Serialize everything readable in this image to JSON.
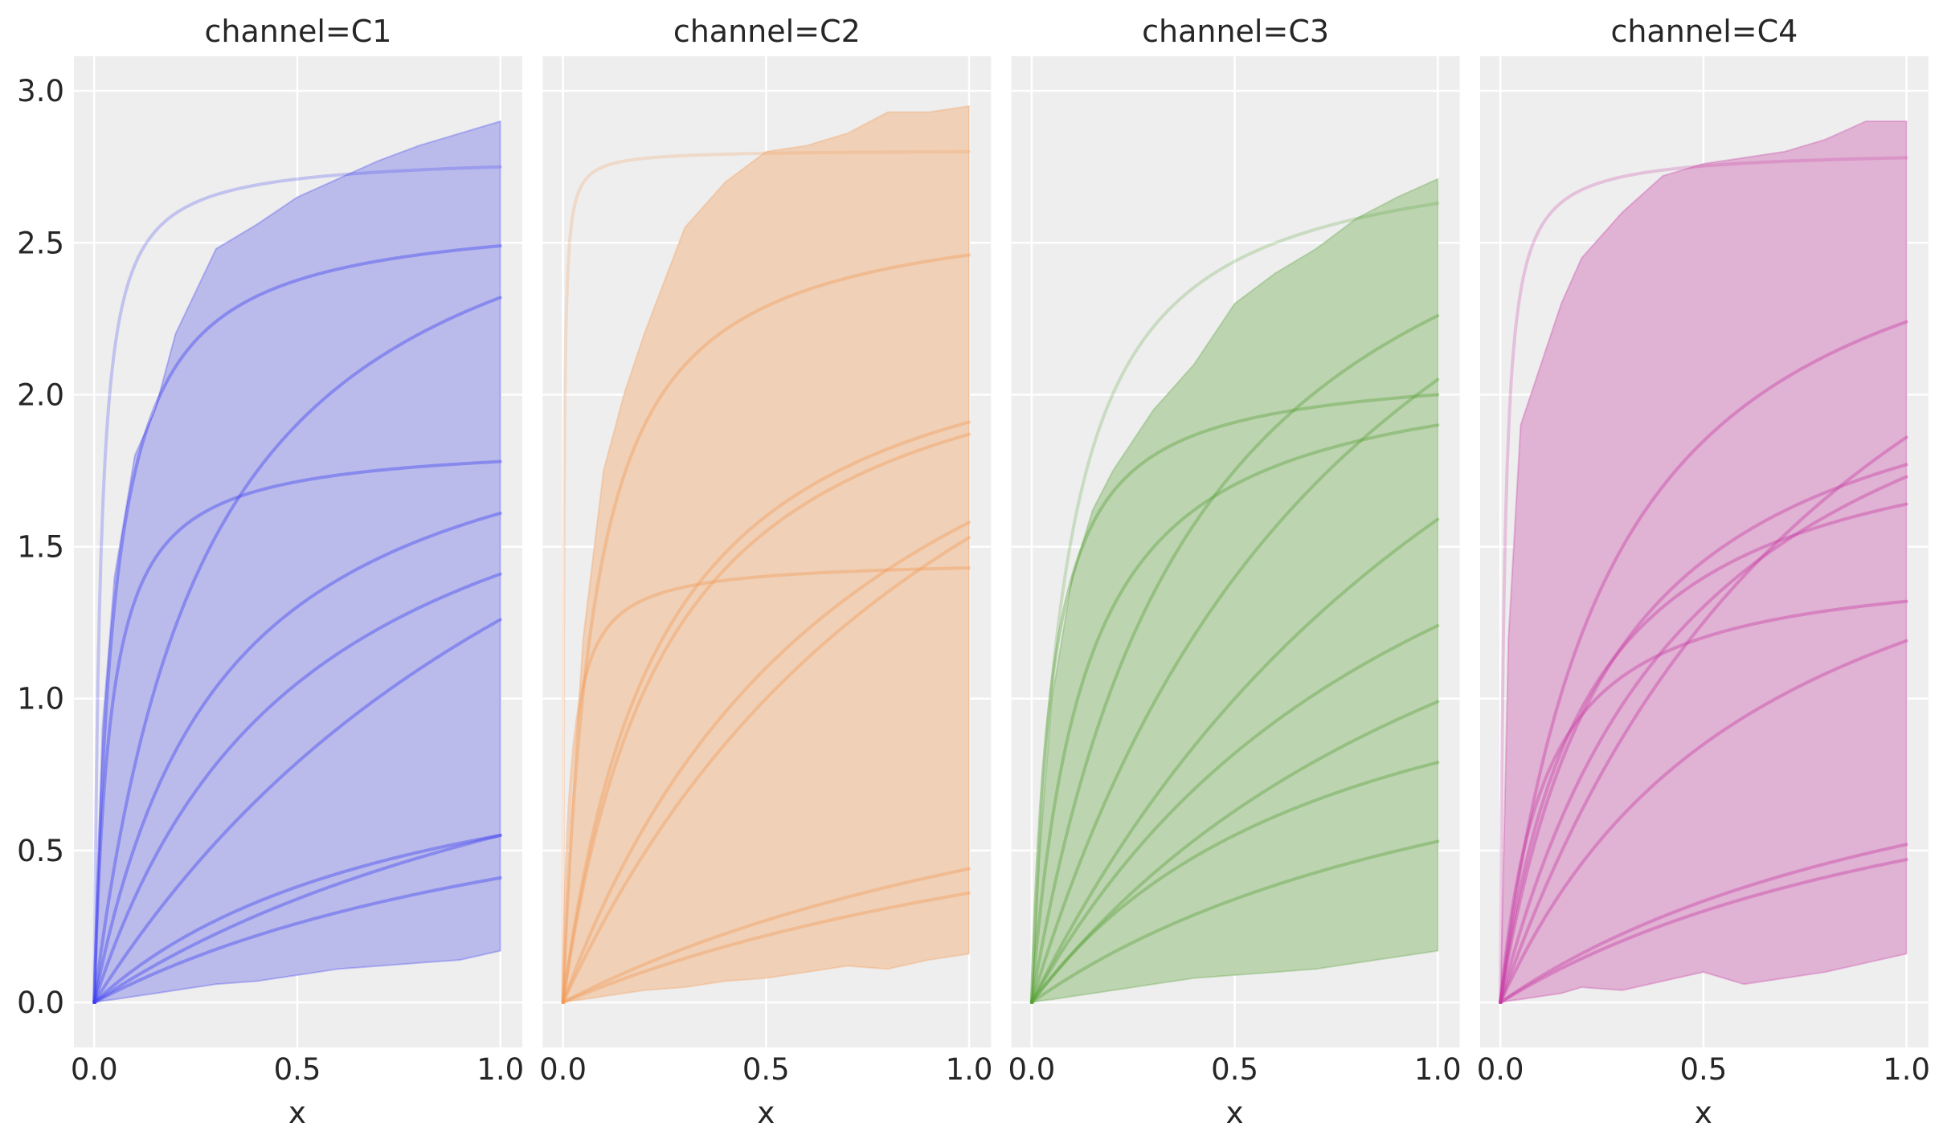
{
  "chart_data": {
    "type": "line",
    "ylim": [
      -0.148,
      3.114
    ],
    "xlim": [
      -0.05,
      1.054
    ],
    "yticks": [
      "0.0",
      "0.5",
      "1.0",
      "1.5",
      "2.0",
      "2.5",
      "3.0"
    ],
    "ytick_values": [
      0,
      0.5,
      1,
      1.5,
      2,
      2.5,
      3
    ],
    "xticks": [
      "0.0",
      "0.5",
      "1.0"
    ],
    "xtick_values": [
      0,
      0.5,
      1
    ],
    "grid": true,
    "curve_model": "y = asymptote_at_1 * (1 + half_saturation) * x / (half_saturation + x)",
    "band_x": [
      0,
      0.02,
      0.05,
      0.1,
      0.15,
      0.2,
      0.3,
      0.4,
      0.5,
      0.6,
      0.7,
      0.8,
      0.9,
      1.0
    ],
    "panels": [
      {
        "title": "channel=C1",
        "xlabel": "x",
        "line_color": "#3f3ff0",
        "fill_color": "#babbeb",
        "band_upper": [
          0,
          0.9,
          1.4,
          1.8,
          1.95,
          2.2,
          2.48,
          2.56,
          2.65,
          2.71,
          2.77,
          2.82,
          2.86,
          2.9
        ],
        "band_lower": [
          0,
          0.005,
          0.01,
          0.02,
          0.03,
          0.04,
          0.06,
          0.07,
          0.09,
          0.11,
          0.12,
          0.13,
          0.14,
          0.17
        ],
        "lines": [
          {
            "value_at_1": 2.75,
            "half_saturation": 0.015
          },
          {
            "value_at_1": 2.49,
            "half_saturation": 0.05
          },
          {
            "value_at_1": 2.32,
            "half_saturation": 0.28
          },
          {
            "value_at_1": 1.78,
            "half_saturation": 0.04
          },
          {
            "value_at_1": 1.61,
            "half_saturation": 0.31
          },
          {
            "value_at_1": 1.41,
            "half_saturation": 0.52
          },
          {
            "value_at_1": 1.26,
            "half_saturation": 1.47
          },
          {
            "value_at_1": 0.55,
            "half_saturation": 0.8
          },
          {
            "value_at_1": 0.55,
            "half_saturation": 1.6
          },
          {
            "value_at_1": 0.41,
            "half_saturation": 1.36
          }
        ]
      },
      {
        "title": "channel=C2",
        "xlabel": "x",
        "line_color": "#f39c5a",
        "fill_color": "#f0d0b6",
        "band_upper": [
          0,
          0.6,
          1.2,
          1.75,
          2.0,
          2.2,
          2.55,
          2.7,
          2.8,
          2.82,
          2.86,
          2.93,
          2.93,
          2.95
        ],
        "band_lower": [
          0,
          0.005,
          0.01,
          0.02,
          0.03,
          0.04,
          0.05,
          0.07,
          0.08,
          0.1,
          0.12,
          0.11,
          0.14,
          0.16
        ],
        "lines": [
          {
            "value_at_1": 2.8,
            "half_saturation": 0.002
          },
          {
            "value_at_1": 2.46,
            "half_saturation": 0.08
          },
          {
            "value_at_1": 1.91,
            "half_saturation": 0.24
          },
          {
            "value_at_1": 1.87,
            "half_saturation": 0.26
          },
          {
            "value_at_1": 1.43,
            "half_saturation": 0.02
          },
          {
            "value_at_1": 1.58,
            "half_saturation": 0.77
          },
          {
            "value_at_1": 1.53,
            "half_saturation": 1.13
          },
          {
            "value_at_1": 0.44,
            "half_saturation": 1.7
          },
          {
            "value_at_1": 0.36,
            "half_saturation": 1.75
          }
        ]
      },
      {
        "title": "channel=C3",
        "xlabel": "x",
        "line_color": "#5aa33a",
        "fill_color": "#bdd4b1",
        "band_upper": [
          0,
          0.5,
          1.0,
          1.4,
          1.62,
          1.75,
          1.95,
          2.1,
          2.3,
          2.4,
          2.48,
          2.58,
          2.65,
          2.71
        ],
        "band_lower": [
          0,
          0.005,
          0.01,
          0.02,
          0.03,
          0.04,
          0.06,
          0.08,
          0.09,
          0.1,
          0.11,
          0.13,
          0.15,
          0.17
        ],
        "lines": [
          {
            "value_at_1": 2.63,
            "half_saturation": 0.085
          },
          {
            "value_at_1": 2.26,
            "half_saturation": 0.41
          },
          {
            "value_at_1": 2.05,
            "half_saturation": 0.87
          },
          {
            "value_at_1": 2.0,
            "half_saturation": 0.05
          },
          {
            "value_at_1": 1.9,
            "half_saturation": 0.13
          },
          {
            "value_at_1": 1.59,
            "half_saturation": 1.44
          },
          {
            "value_at_1": 1.24,
            "half_saturation": 1.05
          },
          {
            "value_at_1": 0.99,
            "half_saturation": 1.33
          },
          {
            "value_at_1": 0.79,
            "half_saturation": 0.77
          },
          {
            "value_at_1": 0.53,
            "half_saturation": 1.27
          }
        ]
      },
      {
        "title": "channel=C4",
        "xlabel": "x",
        "line_color": "#c83aa5",
        "fill_color": "#e0b2d3",
        "band_upper": [
          0,
          1.2,
          1.9,
          2.1,
          2.3,
          2.45,
          2.6,
          2.72,
          2.76,
          2.78,
          2.8,
          2.84,
          2.9,
          2.9
        ],
        "band_lower": [
          0,
          0.005,
          0.01,
          0.02,
          0.03,
          0.05,
          0.04,
          0.07,
          0.1,
          0.06,
          0.08,
          0.1,
          0.13,
          0.16
        ],
        "lines": [
          {
            "value_at_1": 2.78,
            "half_saturation": 0.01
          },
          {
            "value_at_1": 2.24,
            "half_saturation": 0.27
          },
          {
            "value_at_1": 1.86,
            "half_saturation": 0.95
          },
          {
            "value_at_1": 1.77,
            "half_saturation": 0.28
          },
          {
            "value_at_1": 1.73,
            "half_saturation": 0.49
          },
          {
            "value_at_1": 1.64,
            "half_saturation": 0.21
          },
          {
            "value_at_1": 1.32,
            "half_saturation": 0.11
          },
          {
            "value_at_1": 1.19,
            "half_saturation": 0.67
          },
          {
            "value_at_1": 0.52,
            "half_saturation": 1.27
          },
          {
            "value_at_1": 0.47,
            "half_saturation": 1.3
          }
        ]
      }
    ]
  }
}
